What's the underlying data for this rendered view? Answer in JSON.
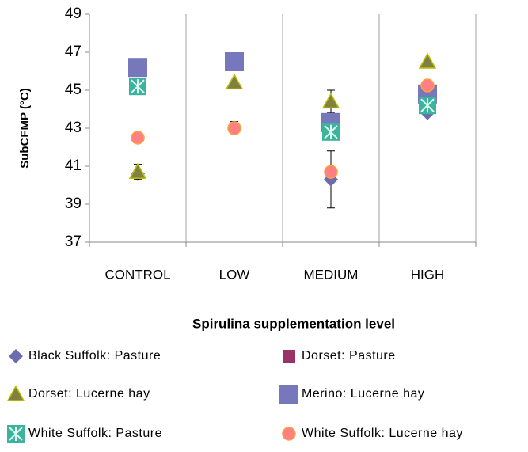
{
  "chart_data": {
    "type": "scatter",
    "y_label": "SubCFMP (°C)",
    "x_label": "Spirulina supplementation level",
    "categories": [
      "CONTROL",
      "LOW",
      "MEDIUM",
      "HIGH"
    ],
    "ylim": [
      37,
      49
    ],
    "yticks": [
      37,
      39,
      41,
      43,
      45,
      47,
      49
    ],
    "grid": true,
    "series": [
      {
        "name": "Black Suffolk: Pasture",
        "color": "#6b6bae",
        "marker": "diamond",
        "values": [
          40.6,
          null,
          40.3,
          43.8
        ],
        "errors": [
          null,
          null,
          1.5,
          null
        ]
      },
      {
        "name": "Dorset: Pasture",
        "color": "#993366",
        "marker": "square",
        "values": [
          null,
          null,
          null,
          null
        ]
      },
      {
        "name": "Dorset: Lucerne hay",
        "color": "#808040",
        "marker": "triangle",
        "values": [
          40.7,
          45.4,
          44.4,
          46.5
        ],
        "errors": [
          0.4,
          null,
          0.6,
          null
        ]
      },
      {
        "name": "Merino: Lucerne hay",
        "color": "#7777bb",
        "marker": "bigsquare",
        "values": [
          46.2,
          46.5,
          43.3,
          44.8
        ]
      },
      {
        "name": "White Suffolk: Pasture",
        "color": "#3cb39c",
        "marker": "star",
        "values": [
          45.2,
          null,
          42.8,
          44.2
        ]
      },
      {
        "name": "White Suffolk: Lucerne hay",
        "color": "#ff8080",
        "marker": "circle",
        "values": [
          42.5,
          43.0,
          40.7,
          45.25
        ],
        "errors": [
          null,
          0.35,
          null,
          null
        ]
      }
    ]
  }
}
